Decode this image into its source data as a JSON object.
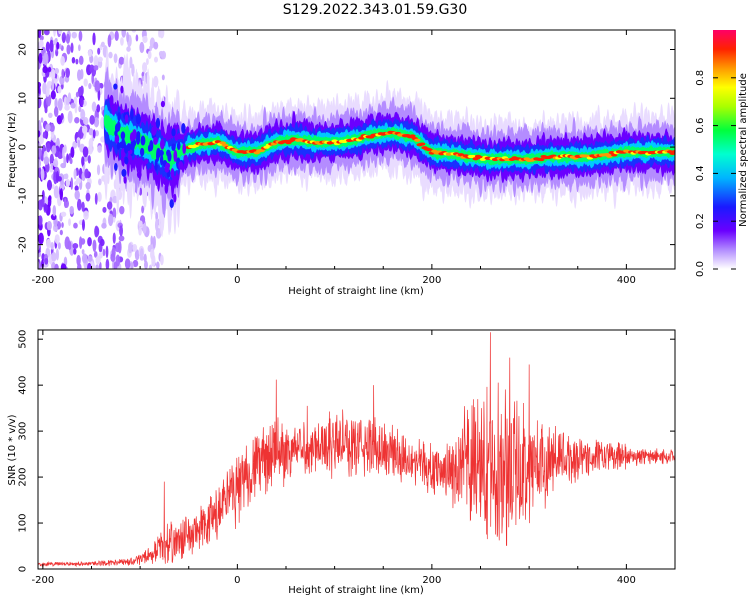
{
  "title": "S129.2022.343.01.59.G30",
  "chart_data": [
    {
      "type": "heatmap",
      "xlabel": "Height of straight line (km)",
      "ylabel": "Frequency (Hz)",
      "xlim": [
        -205,
        450
      ],
      "ylim": [
        -25,
        24
      ],
      "xticks": [
        -200,
        0,
        200,
        400
      ],
      "yticks": [
        -20,
        -10,
        0,
        10,
        20
      ],
      "colorbar": {
        "label": "Normalized spectral amplitude",
        "range": [
          0,
          1
        ],
        "ticks": [
          "0.0",
          "0.2",
          "0.4",
          "0.6",
          "0.8"
        ],
        "colormap": "rainbow (white-purple-blue-cyan-green-yellow-orange-red-magenta)"
      },
      "ridge": {
        "description": "frequency of peak spectral amplitude vs height",
        "x": [
          -135,
          -120,
          -100,
          -80,
          -70,
          -60,
          -40,
          -20,
          0,
          20,
          40,
          60,
          80,
          100,
          120,
          140,
          160,
          180,
          200,
          220,
          240,
          260,
          280,
          300,
          320,
          340,
          360,
          380,
          400,
          420,
          450
        ],
        "y": [
          5,
          3,
          1,
          -1,
          -3,
          -1,
          0.5,
          1,
          -1,
          -1,
          1,
          1.5,
          1,
          1,
          1.5,
          2.5,
          3,
          2,
          -1,
          -1.5,
          -2,
          -2.5,
          -2.5,
          -2.5,
          -2,
          -2,
          -2,
          -1.5,
          -1,
          -1,
          -1
        ]
      },
      "noise_region": {
        "x_range": [
          -205,
          -100
        ],
        "y_range": [
          -25,
          24
        ]
      }
    },
    {
      "type": "line",
      "color": "#ee3333",
      "xlabel": "Height of straight line (km)",
      "ylabel": "SNR (10 * v/v)",
      "xlim": [
        -205,
        450
      ],
      "ylim": [
        0,
        520
      ],
      "xticks": [
        -200,
        0,
        200,
        400
      ],
      "yticks": [
        0,
        100,
        200,
        300,
        400,
        500
      ],
      "envelope": {
        "x": [
          -205,
          -150,
          -110,
          -90,
          -80,
          -70,
          -40,
          -20,
          0,
          20,
          40,
          60,
          80,
          100,
          120,
          140,
          160,
          180,
          200,
          220,
          240,
          260,
          280,
          300,
          320,
          340,
          360,
          380,
          400,
          420,
          450
        ],
        "mean": [
          10,
          12,
          15,
          30,
          45,
          55,
          80,
          120,
          180,
          230,
          250,
          260,
          270,
          275,
          270,
          265,
          255,
          240,
          215,
          215,
          225,
          225,
          225,
          225,
          235,
          240,
          245,
          245,
          245,
          245,
          245
        ],
        "spread": [
          5,
          6,
          10,
          20,
          40,
          50,
          60,
          80,
          90,
          90,
          90,
          70,
          70,
          90,
          80,
          80,
          80,
          60,
          60,
          90,
          170,
          200,
          200,
          150,
          100,
          70,
          50,
          40,
          30,
          20,
          18
        ]
      },
      "peaks": [
        {
          "x": -75,
          "y": 190
        },
        {
          "x": 40,
          "y": 412
        },
        {
          "x": 72,
          "y": 355
        },
        {
          "x": 140,
          "y": 400
        },
        {
          "x": 260,
          "y": 515
        },
        {
          "x": 280,
          "y": 460
        },
        {
          "x": 300,
          "y": 445
        }
      ]
    }
  ]
}
